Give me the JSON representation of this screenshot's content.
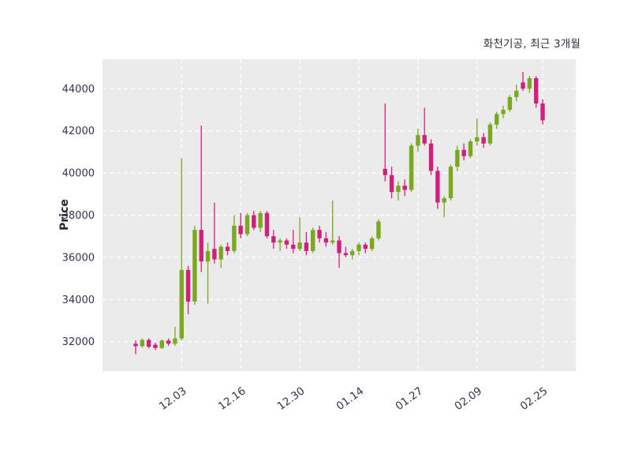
{
  "chart_data": {
    "type": "candlestick",
    "title": "화천기공, 최근 3개월",
    "ylabel": "Price",
    "ylim": [
      30600,
      45400
    ],
    "y_ticks": [
      32000,
      34000,
      36000,
      38000,
      40000,
      42000,
      44000
    ],
    "x_ticks": [
      {
        "index": 7,
        "label": "12.03"
      },
      {
        "index": 16,
        "label": "12.16"
      },
      {
        "index": 25,
        "label": "12.30"
      },
      {
        "index": 34,
        "label": "01.14"
      },
      {
        "index": 43,
        "label": "01.27"
      },
      {
        "index": 52,
        "label": "02.09"
      },
      {
        "index": 62,
        "label": "02.25"
      }
    ],
    "grid": true,
    "legend": "none",
    "plot_bg_color": "#ebebeb",
    "grid_color": "#ffffff",
    "text_color": "#33334d",
    "up_color": "#7aa81e",
    "down_color": "#d2207a",
    "candle_format": [
      "open",
      "high",
      "low",
      "close"
    ],
    "candles": [
      [
        31900,
        32050,
        31400,
        31780
      ],
      [
        31780,
        32150,
        31700,
        32080
      ],
      [
        32080,
        32150,
        31680,
        31760
      ],
      [
        31850,
        31950,
        31600,
        31700
      ],
      [
        31700,
        32100,
        31650,
        32050
      ],
      [
        32050,
        32150,
        31800,
        31900
      ],
      [
        31900,
        32700,
        31800,
        32150
      ],
      [
        32150,
        40700,
        32050,
        35400
      ],
      [
        35400,
        35600,
        33300,
        33900
      ],
      [
        33900,
        37500,
        33750,
        37300
      ],
      [
        37300,
        42250,
        35300,
        35800
      ],
      [
        35800,
        36700,
        33800,
        36300
      ],
      [
        36400,
        38600,
        35700,
        35900
      ],
      [
        35900,
        36600,
        35500,
        36500
      ],
      [
        36500,
        36700,
        36100,
        36300
      ],
      [
        36300,
        38000,
        36200,
        37500
      ],
      [
        37500,
        38100,
        36900,
        37100
      ],
      [
        37100,
        38100,
        37000,
        38000
      ],
      [
        38000,
        38200,
        37300,
        37400
      ],
      [
        37400,
        38200,
        37200,
        38100
      ],
      [
        38100,
        38200,
        36900,
        37000
      ],
      [
        37000,
        37300,
        36400,
        36700
      ],
      [
        36700,
        36900,
        36300,
        36800
      ],
      [
        36800,
        36900,
        36400,
        36600
      ],
      [
        36600,
        37300,
        36200,
        36400
      ],
      [
        36400,
        37900,
        36300,
        36700
      ],
      [
        36700,
        37200,
        36100,
        36300
      ],
      [
        36300,
        37400,
        36200,
        37300
      ],
      [
        37300,
        37500,
        36700,
        36900
      ],
      [
        36900,
        37200,
        36500,
        36700
      ],
      [
        36700,
        38700,
        36600,
        36800
      ],
      [
        36800,
        37000,
        35500,
        36200
      ],
      [
        36200,
        36500,
        36000,
        36100
      ],
      [
        36100,
        36400,
        35900,
        36300
      ],
      [
        36300,
        36700,
        36100,
        36600
      ],
      [
        36600,
        36700,
        36200,
        36400
      ],
      [
        36400,
        37000,
        36300,
        36900
      ],
      [
        36900,
        37800,
        36800,
        37700
      ],
      [
        40200,
        43300,
        39600,
        39900
      ],
      [
        39900,
        40300,
        38800,
        39100
      ],
      [
        39100,
        39600,
        38700,
        39400
      ],
      [
        39400,
        39700,
        38900,
        39200
      ],
      [
        39200,
        41400,
        39100,
        41300
      ],
      [
        41300,
        42100,
        41000,
        41800
      ],
      [
        41800,
        43100,
        41300,
        41400
      ],
      [
        41400,
        41600,
        39900,
        40100
      ],
      [
        40100,
        40300,
        38300,
        38600
      ],
      [
        38600,
        38900,
        37900,
        38800
      ],
      [
        38800,
        40400,
        38700,
        40300
      ],
      [
        40300,
        41300,
        40100,
        41100
      ],
      [
        41100,
        41400,
        40600,
        40800
      ],
      [
        40800,
        41600,
        40700,
        41500
      ],
      [
        41500,
        42600,
        41300,
        41700
      ],
      [
        41700,
        41900,
        41200,
        41400
      ],
      [
        41400,
        42400,
        41300,
        42300
      ],
      [
        42300,
        42900,
        42100,
        42800
      ],
      [
        42800,
        43200,
        42600,
        43000
      ],
      [
        43000,
        43700,
        42900,
        43600
      ],
      [
        43600,
        44200,
        43400,
        43900
      ],
      [
        44300,
        44800,
        43900,
        44000
      ],
      [
        44000,
        44600,
        43800,
        44500
      ],
      [
        44500,
        44600,
        43100,
        43300
      ],
      [
        43300,
        43500,
        42300,
        42500
      ]
    ]
  }
}
